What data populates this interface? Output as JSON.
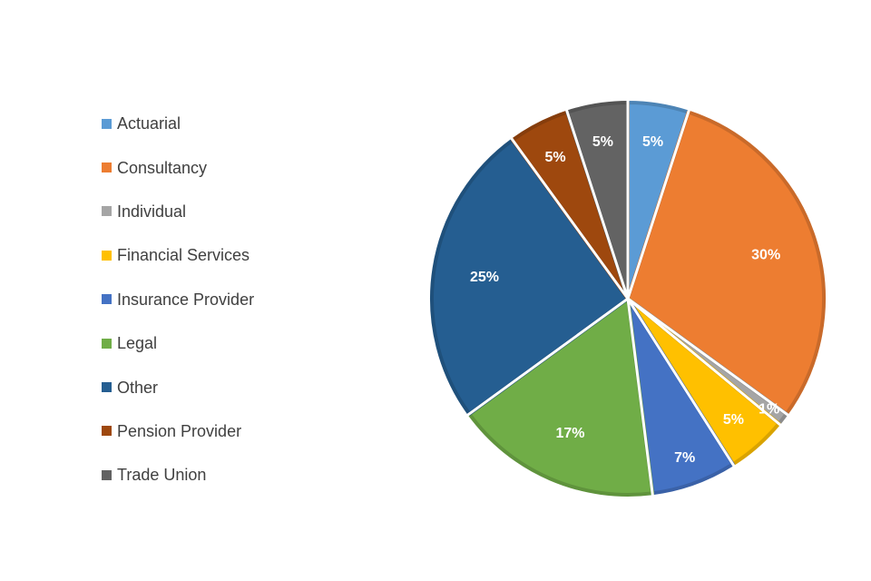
{
  "chart_data": {
    "type": "pie",
    "categories": [
      "Actuarial",
      "Consultancy",
      "Individual",
      "Financial Services",
      "Insurance Provider",
      "Legal",
      "Other",
      "Pension Provider",
      "Trade Union"
    ],
    "values": [
      5,
      30,
      1,
      5,
      7,
      17,
      25,
      5,
      5
    ],
    "data_labels": [
      "5%",
      "30%",
      "1%",
      "5%",
      "7%",
      "17%",
      "25%",
      "5%",
      "5%"
    ],
    "colors": [
      "#5B9BD5",
      "#ED7D31",
      "#A5A5A5",
      "#FFC000",
      "#4472C4",
      "#70AD47",
      "#255E91",
      "#9E480E",
      "#636363"
    ],
    "legend_position": "left",
    "title": ""
  }
}
